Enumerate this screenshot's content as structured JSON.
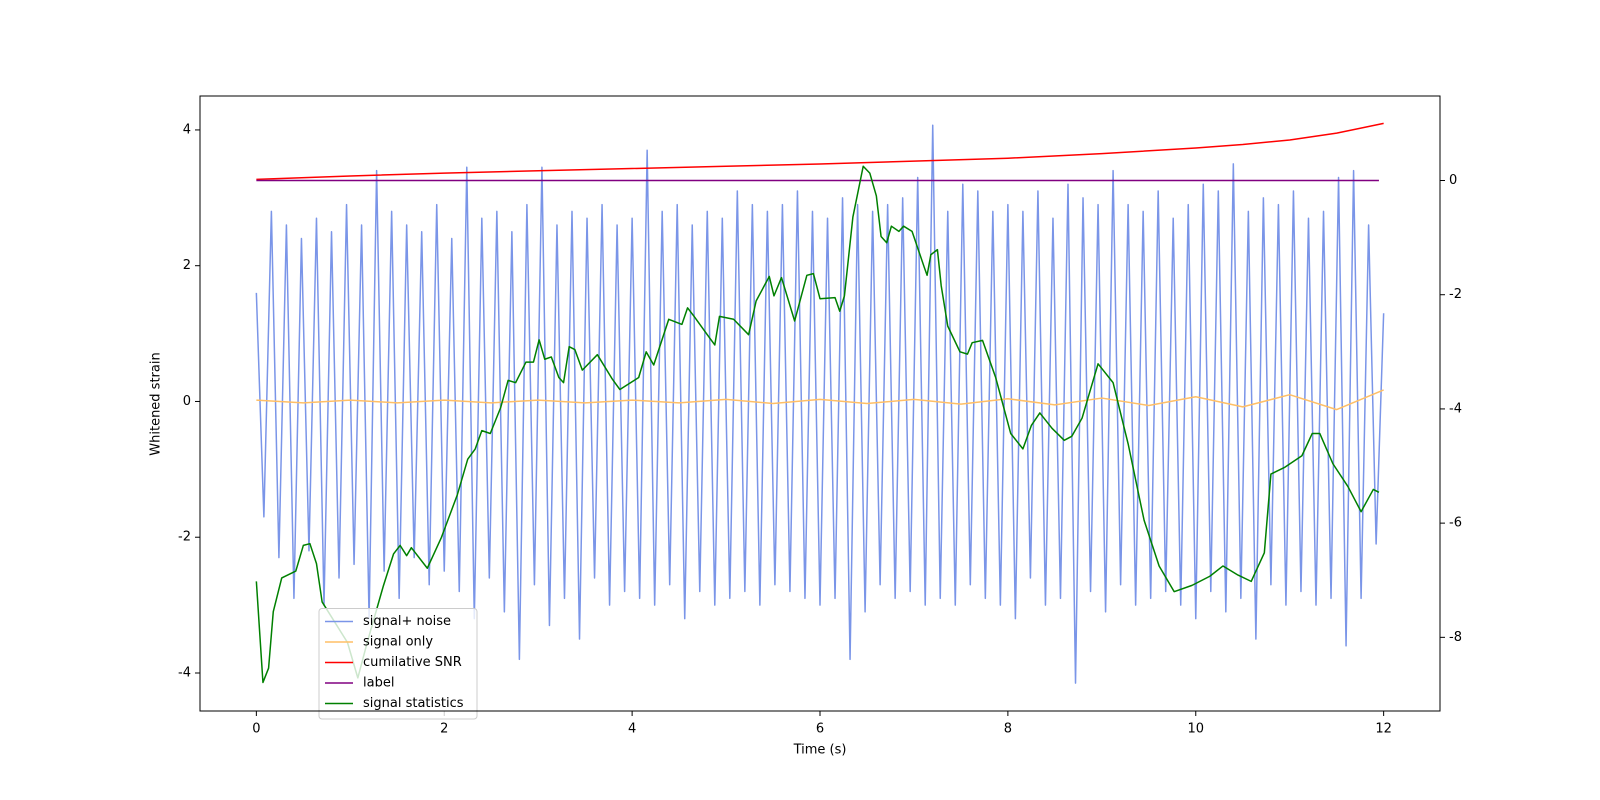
{
  "chart_data": {
    "type": "line",
    "xlabel": "Time (s)",
    "ylabel": "Whitened strain",
    "xlim": [
      -0.6,
      12.6
    ],
    "xticks": [
      0,
      2,
      4,
      6,
      8,
      10,
      12
    ],
    "ylim": [
      -4.56,
      4.5
    ],
    "yticks": [
      -4,
      -2,
      0,
      2,
      4
    ],
    "y2lim": [
      -9.29,
      1.48
    ],
    "y2ticks": [
      -8,
      -6,
      -4,
      -2,
      0
    ],
    "legend": "lower left",
    "series": [
      {
        "name": "signal+ noise",
        "color": "#7a95e8",
        "axis": "y",
        "x": [
          0,
          0.08,
          0.16,
          0.24,
          0.32,
          0.4,
          0.48,
          0.56,
          0.64,
          0.72,
          0.8,
          0.88,
          0.96,
          1.04,
          1.12,
          1.2,
          1.28,
          1.36,
          1.44,
          1.52,
          1.6,
          1.68,
          1.76,
          1.84,
          1.92,
          2,
          2.08,
          2.16,
          2.24,
          2.32,
          2.4,
          2.48,
          2.56,
          2.64,
          2.72,
          2.8,
          2.88,
          2.96,
          3.04,
          3.12,
          3.2,
          3.28,
          3.36,
          3.44,
          3.52,
          3.6,
          3.68,
          3.76,
          3.84,
          3.92,
          4,
          4.08,
          4.16,
          4.24,
          4.32,
          4.4,
          4.48,
          4.56,
          4.64,
          4.72,
          4.8,
          4.88,
          4.96,
          5.04,
          5.12,
          5.2,
          5.28,
          5.36,
          5.44,
          5.52,
          5.6,
          5.68,
          5.76,
          5.84,
          5.92,
          6,
          6.08,
          6.16,
          6.24,
          6.32,
          6.4,
          6.48,
          6.56,
          6.64,
          6.72,
          6.8,
          6.88,
          6.96,
          7.04,
          7.12,
          7.2,
          7.28,
          7.36,
          7.44,
          7.52,
          7.6,
          7.68,
          7.76,
          7.84,
          7.92,
          8,
          8.08,
          8.16,
          8.24,
          8.32,
          8.4,
          8.48,
          8.56,
          8.64,
          8.72,
          8.8,
          8.88,
          8.96,
          9.04,
          9.12,
          9.2,
          9.28,
          9.36,
          9.44,
          9.52,
          9.6,
          9.68,
          9.76,
          9.84,
          9.92,
          10,
          10.08,
          10.16,
          10.24,
          10.32,
          10.4,
          10.48,
          10.56,
          10.64,
          10.72,
          10.8,
          10.88,
          10.96,
          11.04,
          11.12,
          11.2,
          11.28,
          11.36,
          11.44,
          11.52,
          11.6,
          11.68,
          11.76,
          11.84,
          11.92,
          12
        ],
        "values": [
          1.6,
          -1.7,
          2.8,
          -2.3,
          2.6,
          -2.9,
          2.4,
          -2.2,
          2.7,
          -3.0,
          2.5,
          -2.6,
          2.9,
          -2.4,
          2.6,
          -3.2,
          3.4,
          -2.5,
          2.8,
          -2.9,
          2.6,
          -2.3,
          2.5,
          -2.7,
          2.9,
          -2.5,
          2.4,
          -2.8,
          3.45,
          -3.2,
          2.7,
          -2.6,
          2.8,
          -3.1,
          2.5,
          -3.8,
          2.9,
          -2.7,
          3.45,
          -3.3,
          2.6,
          -2.9,
          2.8,
          -3.5,
          2.7,
          -2.6,
          2.9,
          -3.0,
          2.6,
          -2.8,
          2.7,
          -2.9,
          3.7,
          -3.0,
          2.8,
          -2.7,
          2.9,
          -3.2,
          2.6,
          -2.8,
          2.8,
          -3.0,
          2.7,
          -2.9,
          3.1,
          -2.8,
          2.9,
          -3.0,
          2.8,
          -2.7,
          2.9,
          -2.8,
          3.1,
          -2.9,
          2.8,
          -3.0,
          2.7,
          -2.9,
          3.0,
          -3.8,
          2.9,
          -3.1,
          2.8,
          -2.7,
          2.9,
          -2.9,
          3.0,
          -2.8,
          3.3,
          -3.0,
          4.07,
          -2.9,
          2.8,
          -3.0,
          3.2,
          -2.7,
          3.1,
          -2.9,
          2.8,
          -3.0,
          2.9,
          -3.2,
          2.8,
          -2.6,
          3.1,
          -3.0,
          2.7,
          -2.9,
          3.2,
          -4.15,
          3.0,
          -2.8,
          2.9,
          -3.1,
          3.4,
          -2.7,
          2.9,
          -3.0,
          2.8,
          -2.9,
          3.1,
          -2.8,
          2.7,
          -3.0,
          2.9,
          -3.2,
          3.2,
          -2.8,
          3.1,
          -3.1,
          3.5,
          -2.9,
          2.8,
          -3.5,
          3.0,
          -2.7,
          2.9,
          -3.0,
          3.1,
          -2.8,
          2.7,
          -3.0,
          2.8,
          -2.9,
          3.3,
          -3.6,
          3.4,
          -2.9,
          2.6,
          -2.1,
          1.3
        ]
      },
      {
        "name": "signal only",
        "color": "#ffbf66",
        "axis": "y",
        "x": [
          0,
          0.5,
          1,
          1.5,
          2,
          2.5,
          3,
          3.5,
          4,
          4.5,
          5,
          5.5,
          6,
          6.5,
          7,
          7.5,
          8,
          8.5,
          9,
          9.5,
          10,
          10.5,
          11,
          11.5,
          12
        ],
        "values": [
          0.02,
          -0.02,
          0.02,
          -0.02,
          0.02,
          -0.02,
          0.02,
          -0.02,
          0.02,
          -0.02,
          0.03,
          -0.03,
          0.03,
          -0.03,
          0.03,
          -0.04,
          0.04,
          -0.05,
          0.05,
          -0.06,
          0.07,
          -0.08,
          0.1,
          -0.12,
          0.17
        ]
      },
      {
        "name": "cumilative SNR",
        "color": "red",
        "axis": "y2",
        "x": [
          0,
          1,
          2,
          3,
          4,
          5,
          6,
          7,
          8,
          9,
          10,
          10.5,
          11,
          11.5,
          12
        ],
        "values": [
          0.02,
          0.08,
          0.13,
          0.17,
          0.21,
          0.25,
          0.29,
          0.34,
          0.39,
          0.47,
          0.57,
          0.63,
          0.71,
          0.83,
          1.0
        ]
      },
      {
        "name": "label",
        "color": "purple",
        "axis": "y2",
        "x": [
          0,
          11.95
        ],
        "values": [
          0,
          0
        ]
      },
      {
        "name": "signal statistics",
        "color": "green",
        "axis": "y2",
        "x": [
          0,
          0.07,
          0.13,
          0.18,
          0.27,
          0.42,
          0.5,
          0.57,
          0.64,
          0.7,
          0.97,
          1.08,
          1.18,
          1.35,
          1.46,
          1.53,
          1.6,
          1.65,
          1.82,
          1.97,
          2.14,
          2.25,
          2.33,
          2.4,
          2.49,
          2.6,
          2.68,
          2.76,
          2.87,
          2.95,
          3.01,
          3.07,
          3.14,
          3.22,
          3.27,
          3.33,
          3.39,
          3.47,
          3.63,
          3.79,
          3.87,
          4.07,
          4.15,
          4.23,
          4.39,
          4.53,
          4.59,
          4.66,
          4.8,
          4.88,
          4.93,
          5.08,
          5.24,
          5.32,
          5.46,
          5.51,
          5.59,
          5.73,
          5.86,
          5.93,
          6.0,
          6.16,
          6.21,
          6.26,
          6.35,
          6.46,
          6.53,
          6.6,
          6.65,
          6.71,
          6.76,
          6.84,
          6.89,
          6.98,
          7.11,
          7.14,
          7.18,
          7.25,
          7.29,
          7.36,
          7.49,
          7.57,
          7.62,
          7.73,
          7.87,
          8.03,
          8.16,
          8.25,
          8.34,
          8.47,
          8.6,
          8.68,
          8.79,
          8.96,
          9.12,
          9.28,
          9.45,
          9.61,
          9.77,
          9.96,
          10.15,
          10.29,
          10.45,
          10.59,
          10.73,
          10.8,
          10.95,
          11.13,
          11.24,
          11.32,
          11.46,
          11.62,
          11.76,
          11.89,
          11.95
        ],
        "values": [
          -7.02,
          -8.79,
          -8.54,
          -7.55,
          -6.96,
          -6.84,
          -6.39,
          -6.36,
          -6.71,
          -7.38,
          -8.09,
          -8.71,
          -8.09,
          -7.11,
          -6.54,
          -6.39,
          -6.57,
          -6.43,
          -6.79,
          -6.25,
          -5.5,
          -4.88,
          -4.7,
          -4.38,
          -4.43,
          -3.98,
          -3.5,
          -3.54,
          -3.18,
          -3.18,
          -2.79,
          -3.13,
          -3.09,
          -3.45,
          -3.54,
          -2.91,
          -2.96,
          -3.32,
          -3.05,
          -3.48,
          -3.66,
          -3.45,
          -3.0,
          -3.23,
          -2.43,
          -2.52,
          -2.23,
          -2.38,
          -2.7,
          -2.88,
          -2.38,
          -2.43,
          -2.7,
          -2.11,
          -1.68,
          -2.02,
          -1.7,
          -2.46,
          -1.66,
          -1.63,
          -2.07,
          -2.05,
          -2.29,
          -2.02,
          -0.64,
          0.25,
          0.13,
          -0.27,
          -0.98,
          -1.09,
          -0.8,
          -0.89,
          -0.8,
          -0.89,
          -1.52,
          -1.66,
          -1.3,
          -1.21,
          -1.84,
          -2.55,
          -3.0,
          -3.04,
          -2.84,
          -2.8,
          -3.45,
          -4.43,
          -4.7,
          -4.29,
          -4.07,
          -4.34,
          -4.55,
          -4.48,
          -4.16,
          -3.21,
          -3.54,
          -4.61,
          -5.95,
          -6.75,
          -7.2,
          -7.09,
          -6.93,
          -6.75,
          -6.91,
          -7.02,
          -6.52,
          -5.14,
          -5.02,
          -4.82,
          -4.43,
          -4.43,
          -4.96,
          -5.36,
          -5.8,
          -5.41,
          -5.46
        ]
      }
    ]
  }
}
